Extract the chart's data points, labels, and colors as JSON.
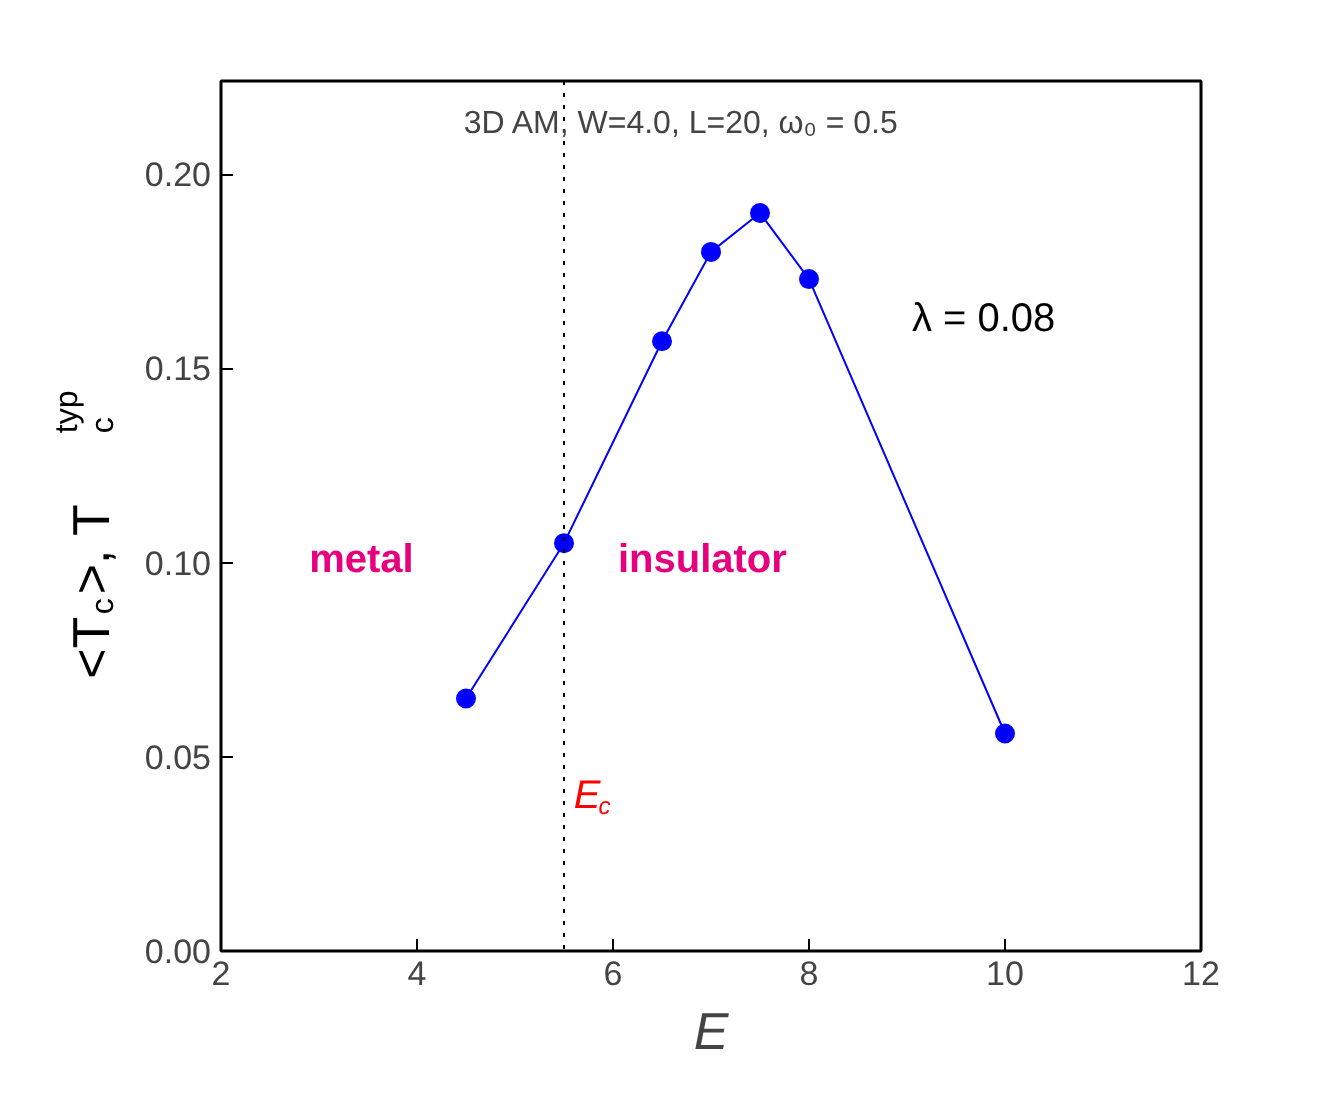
{
  "chart_data": {
    "type": "line",
    "title": "3D AM, W=4.0, L=20, ω₀ = 0.5",
    "xlabel": "E",
    "ylabel": "<T$_{c}$>,  T$_{c}$$^{typ}$",
    "x": [
      4.5,
      5.5,
      6.5,
      7,
      7.5,
      8,
      10
    ],
    "series": [
      {
        "color": "#0000ff",
        "values": [
          0.065,
          0.105,
          0.157,
          0.18,
          0.19,
          0.173,
          0.056
        ]
      }
    ],
    "xlim": [
      2,
      12
    ],
    "ylim": [
      0,
      0.224
    ],
    "xticks": [
      2,
      4,
      6,
      8,
      10,
      12
    ],
    "yticks": [
      {
        "value": 0,
        "label": "0.00"
      },
      {
        "value": 0.05,
        "label": "0.05"
      },
      {
        "value": 0.1,
        "label": "0.10"
      },
      {
        "value": 0.15,
        "label": "0.15"
      },
      {
        "value": 0.2,
        "label": "0.20"
      }
    ],
    "marker": "circle",
    "line_style": "solid",
    "grid": false,
    "ref_lines": [
      {
        "axis": "x",
        "value": 5.5,
        "label": "E$_{c}$",
        "color": "#000000",
        "line_style": "dotted"
      }
    ],
    "annotations": [
      "λ = 0.08",
      "metal",
      "insulator"
    ]
  }
}
